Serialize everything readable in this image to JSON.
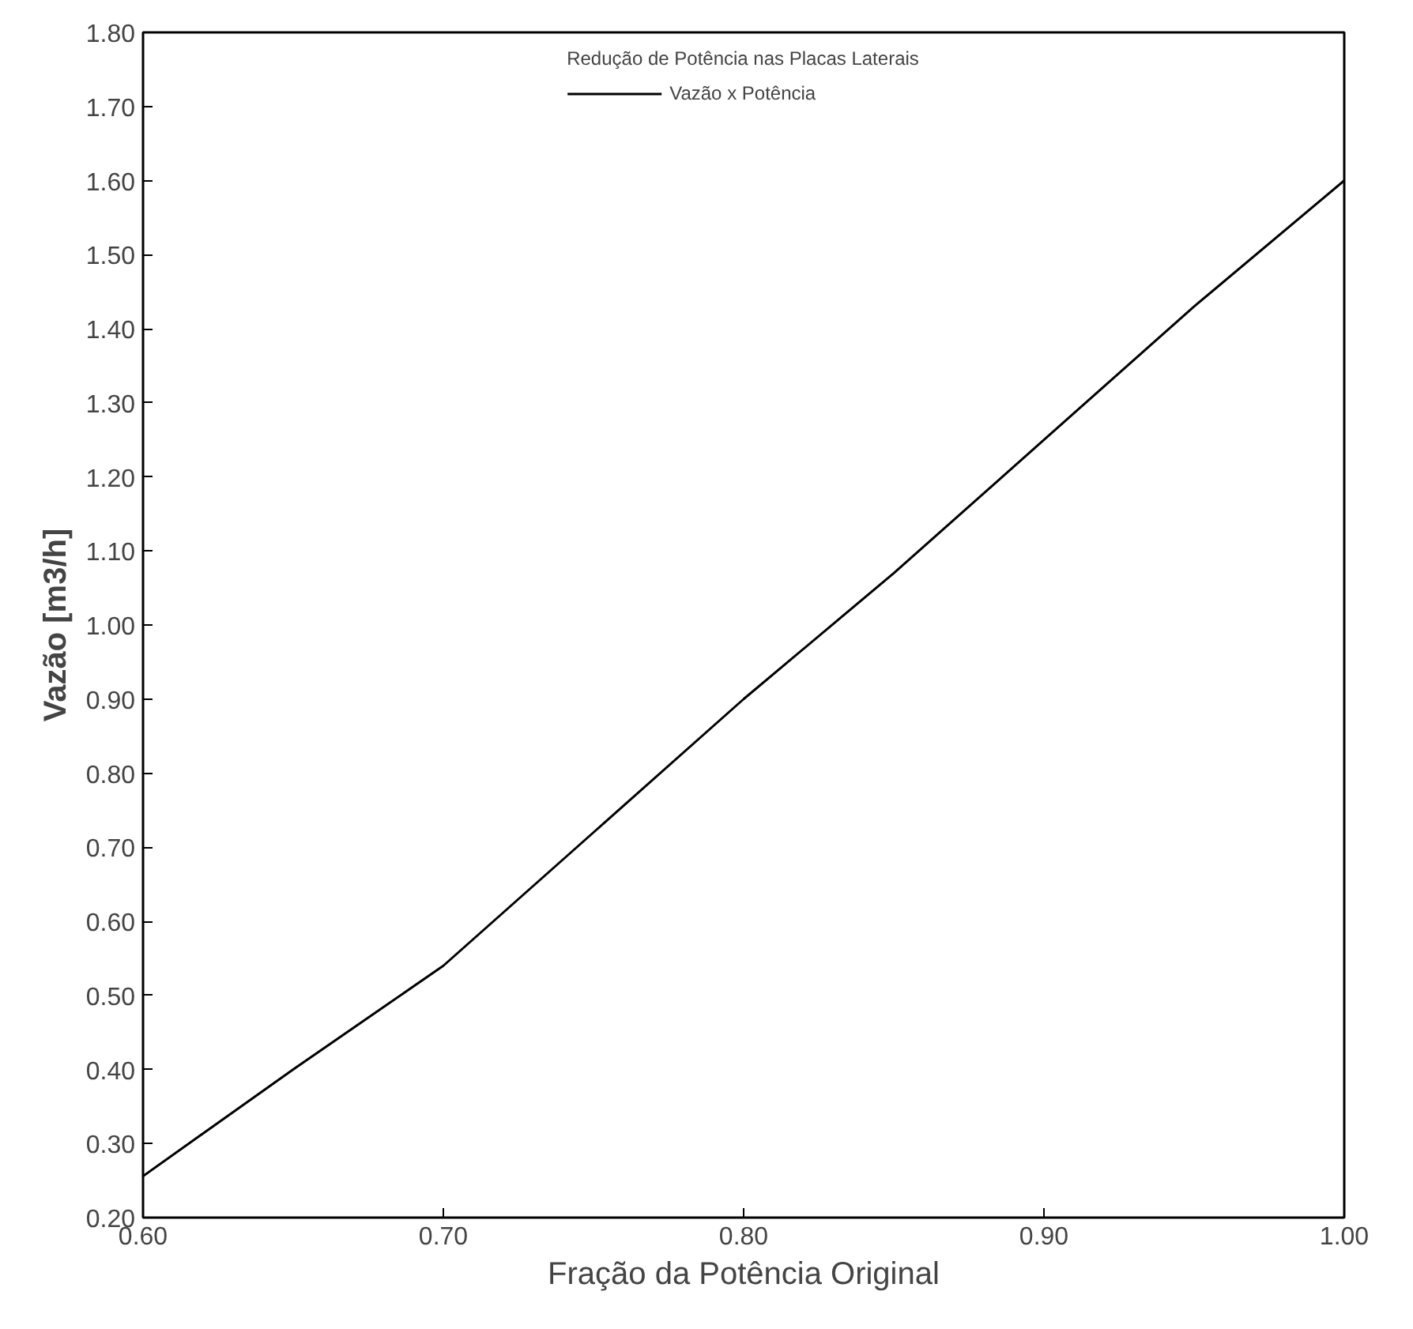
{
  "chart_data": {
    "type": "line",
    "xlabel": "Fração da Potência Original",
    "ylabel": "Vazão [m3/h]",
    "legend_title": "Redução de Potência nas Placas Laterais",
    "x": [
      0.6,
      0.65,
      0.7,
      0.75,
      0.8,
      0.85,
      0.9,
      0.95,
      1.0
    ],
    "series": [
      {
        "name": "Vazão x Potência",
        "color": "#000000",
        "values": [
          0.256,
          0.4,
          0.54,
          0.72,
          0.9,
          1.07,
          1.25,
          1.43,
          1.6
        ]
      }
    ],
    "xlim": [
      0.6,
      1.0
    ],
    "ylim": [
      0.2,
      1.8
    ],
    "xticks": [
      {
        "value": 0.6,
        "label": "0.60"
      },
      {
        "value": 0.7,
        "label": "0.70"
      },
      {
        "value": 0.8,
        "label": "0.80"
      },
      {
        "value": 0.9,
        "label": "0.90"
      },
      {
        "value": 1.0,
        "label": "1.00"
      }
    ],
    "yticks": [
      {
        "value": 0.2,
        "label": "0.20"
      },
      {
        "value": 0.3,
        "label": "0.30"
      },
      {
        "value": 0.4,
        "label": "0.40"
      },
      {
        "value": 0.5,
        "label": "0.50"
      },
      {
        "value": 0.6,
        "label": "0.60"
      },
      {
        "value": 0.7,
        "label": "0.70"
      },
      {
        "value": 0.8,
        "label": "0.80"
      },
      {
        "value": 0.9,
        "label": "0.90"
      },
      {
        "value": 1.0,
        "label": "1.00"
      },
      {
        "value": 1.1,
        "label": "1.10"
      },
      {
        "value": 1.2,
        "label": "1.20"
      },
      {
        "value": 1.3,
        "label": "1.30"
      },
      {
        "value": 1.4,
        "label": "1.40"
      },
      {
        "value": 1.5,
        "label": "1.50"
      },
      {
        "value": 1.6,
        "label": "1.60"
      },
      {
        "value": 1.7,
        "label": "1.70"
      },
      {
        "value": 1.8,
        "label": "1.80"
      }
    ],
    "grid": false,
    "legend": "top",
    "marker": "none",
    "line_style": "solid"
  }
}
